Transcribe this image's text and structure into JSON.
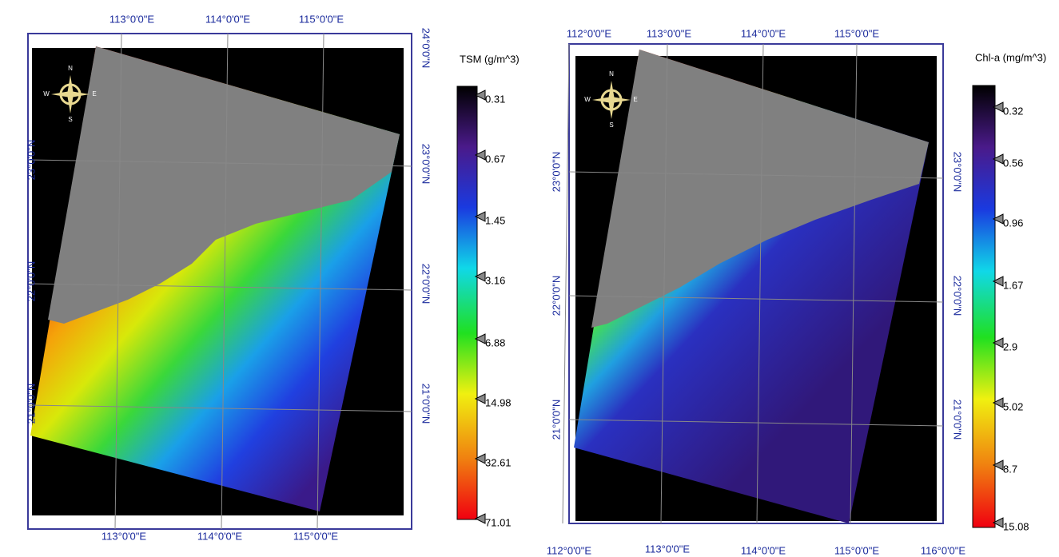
{
  "panels": [
    {
      "legend": {
        "title": "TSM (g/m^3)",
        "labels": [
          "0.31",
          "0.67",
          "1.45",
          "3.16",
          "6.88",
          "14.98",
          "32.61",
          "71.01"
        ]
      },
      "top_labels": [
        "113°0'0\"E",
        "114°0'0\"E",
        "115°0'0\"E"
      ],
      "bottom_labels": [
        "113°0'0\"E",
        "114°0'0\"E",
        "115°0'0\"E"
      ],
      "left_labels": [
        "23°0'0\"N",
        "22°0'0\"N",
        "21°0'0\"N"
      ],
      "right_labels": [
        "24°0'0\"N",
        "23°0'0\"N",
        "22°0'0\"N",
        "21°0'0\"N"
      ],
      "compass": [
        "N",
        "S",
        "W",
        "E"
      ]
    },
    {
      "legend": {
        "title": "Chl-a (mg/m^3)",
        "labels": [
          "0.32",
          "0.56",
          "0.96",
          "1.67",
          "2.9",
          "5.02",
          "8.7",
          "15.08"
        ]
      },
      "top_labels": [
        "112°0'0\"E",
        "113°0'0\"E",
        "114°0'0\"E",
        "115°0'0\"E"
      ],
      "bottom_labels": [
        "112°0'0\"E",
        "113°0'0\"E",
        "114°0'0\"E",
        "115°0'0\"E",
        "116°0'0\"E"
      ],
      "left_labels": [
        "23°0'0\"N",
        "22°0'0\"N",
        "21°0'0\"N"
      ],
      "right_labels": [
        "23°0'0\"N",
        "22°0'0\"N",
        "21°0'0\"N"
      ],
      "compass": [
        "N",
        "S",
        "W",
        "E"
      ]
    }
  ]
}
